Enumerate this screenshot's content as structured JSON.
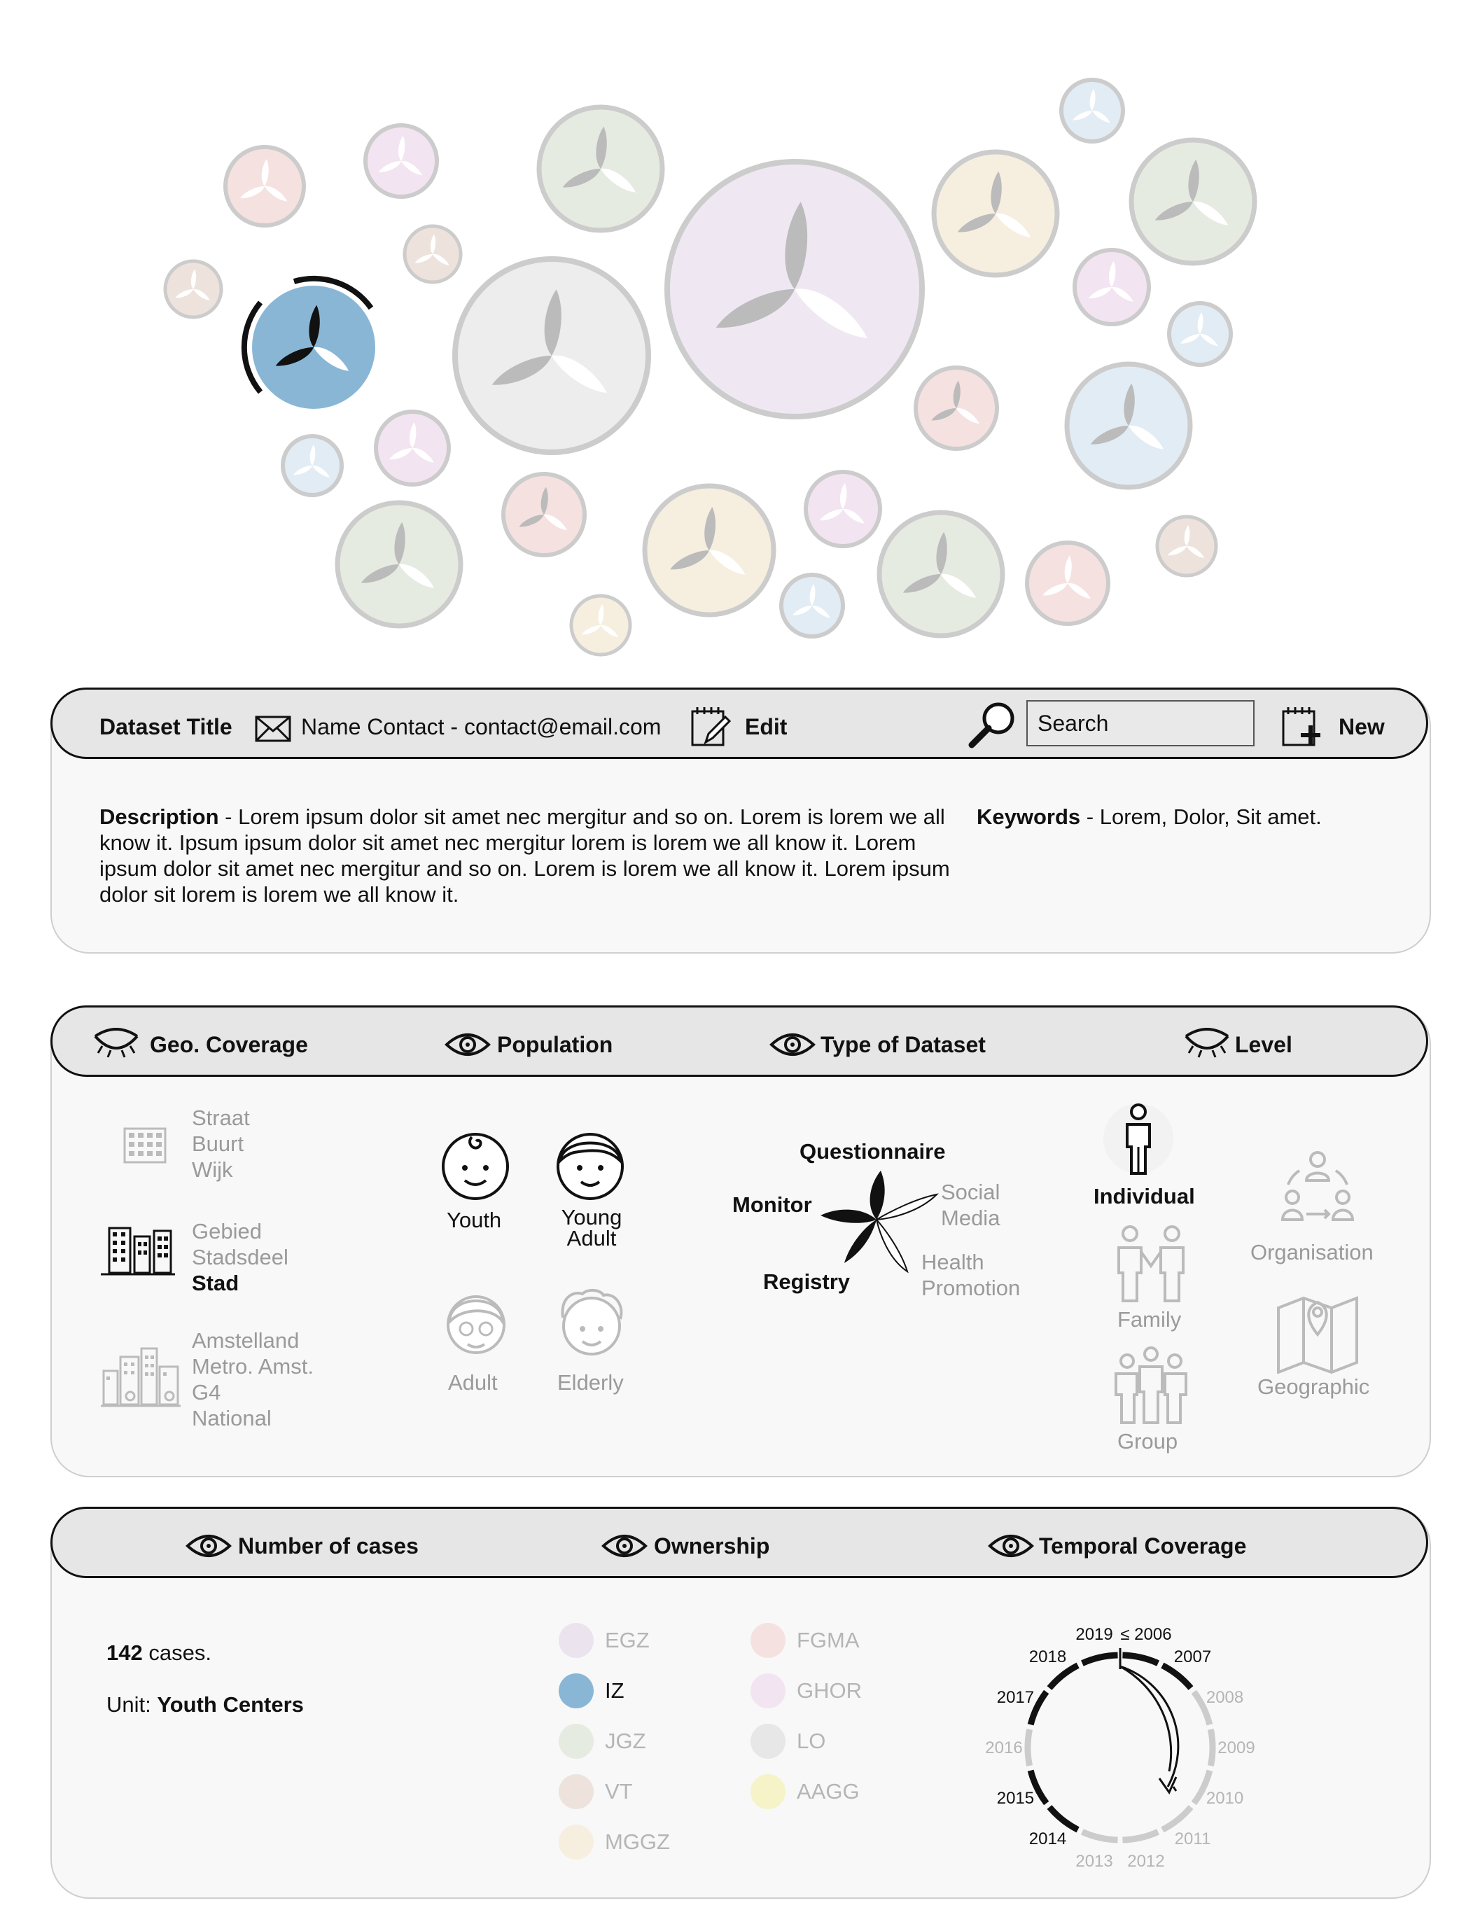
{
  "header": {
    "dataset_title": "Dataset Title",
    "contact": "Name Contact - contact@email.com",
    "edit_label": "Edit",
    "search_value": "Search",
    "new_label": "New"
  },
  "info": {
    "description_label": "Description",
    "description_text": " - Lorem ipsum dolor sit amet nec mergitur and so on. Lorem is lorem we all know it. Ipsum ipsum dolor sit amet nec mergitur lorem is lorem we all know it. Lorem ipsum dolor sit amet nec mergitur and so on. Lorem is lorem we all know it. Lorem ipsum dolor sit lorem is lorem we all know it.",
    "keywords_label": "Keywords",
    "keywords_text": " - Lorem, Dolor, Sit amet."
  },
  "filters": {
    "geo_title": "Geo. Coverage",
    "population_title": "Population",
    "type_title": "Type of Dataset",
    "level_title": "Level",
    "geo_groups": [
      {
        "lines": [
          "Straat",
          "Buurt",
          "Wijk"
        ],
        "active": false,
        "bold_line": -1
      },
      {
        "lines": [
          "Gebied",
          "Stadsdeel",
          "Stad"
        ],
        "active": true,
        "bold_line": 2
      },
      {
        "lines": [
          "Amstelland",
          "Metro. Amst.",
          "G4",
          "National"
        ],
        "active": false,
        "bold_line": -1
      }
    ],
    "population": [
      {
        "label": "Youth",
        "active": true
      },
      {
        "label": "Young\nAdult",
        "active": true
      },
      {
        "label": "Adult",
        "active": false
      },
      {
        "label": "Elderly",
        "active": false
      }
    ],
    "types": {
      "questionnaire": "Questionnaire",
      "monitor": "Monitor",
      "registry": "Registry",
      "social_media_1": "Social",
      "social_media_2": "Media",
      "health_1": "Health",
      "health_2": "Promotion"
    },
    "levels": {
      "individual": "Individual",
      "family": "Family",
      "group": "Group",
      "organisation": "Organisation",
      "geographic": "Geographic"
    }
  },
  "details": {
    "cases_title": "Number of cases",
    "ownership_title": "Ownership",
    "temporal_title": "Temporal Coverage",
    "cases_count": "142",
    "cases_suffix": " cases.",
    "unit_label": "Unit: ",
    "unit_value": "Youth Centers",
    "ownership": [
      {
        "label": "EGZ",
        "color": "#ebe3ee",
        "active": false
      },
      {
        "label": "IZ",
        "color": "#8ab6d6",
        "active": true
      },
      {
        "label": "JGZ",
        "color": "#e6ebe2",
        "active": false
      },
      {
        "label": "VT",
        "color": "#ede3dc",
        "active": false
      },
      {
        "label": "MGGZ",
        "color": "#f6efdf",
        "active": false
      },
      {
        "label": "FGMA",
        "color": "#f6e1e1",
        "active": false
      },
      {
        "label": "GHOR",
        "color": "#f3e4f1",
        "active": false
      },
      {
        "label": "LO",
        "color": "#e7e7e7",
        "active": false
      },
      {
        "label": "AAGG",
        "color": "#f6f3c8",
        "active": false
      }
    ],
    "years": [
      {
        "label": "≤ 2006",
        "active": true
      },
      {
        "label": "2007",
        "active": true
      },
      {
        "label": "2008",
        "active": false
      },
      {
        "label": "2009",
        "active": false
      },
      {
        "label": "2010",
        "active": false
      },
      {
        "label": "2011",
        "active": false
      },
      {
        "label": "2012",
        "active": false
      },
      {
        "label": "2013",
        "active": false
      },
      {
        "label": "2014",
        "active": true
      },
      {
        "label": "2015",
        "active": true
      },
      {
        "label": "2016",
        "active": false
      },
      {
        "label": "2017",
        "active": true
      },
      {
        "label": "2018",
        "active": true
      },
      {
        "label": "2019",
        "active": true
      }
    ]
  },
  "colors": {
    "accent_blue": "#8ab6d6",
    "panel_header": "#e6e6e6",
    "panel_body": "#f8f8f8",
    "muted_text": "#9a9a9a"
  }
}
